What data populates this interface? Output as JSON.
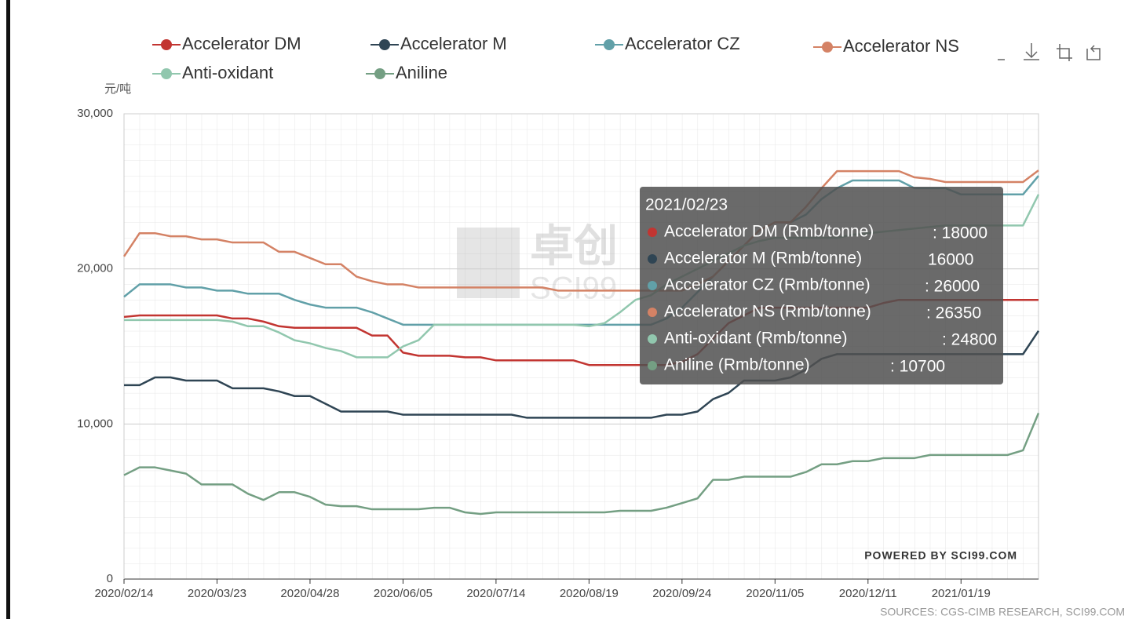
{
  "chart_data": {
    "type": "line",
    "y_axis_label": "元/吨",
    "watermark": "卓创",
    "watermark_sub": "SCI99",
    "credit": "POWERED BY SCI99.COM",
    "source": "SOURCES: CGS-CIMB RESEARCH, SCI99.COM",
    "categories": [
      "2020/02/14",
      null,
      null,
      null,
      null,
      null,
      "2020/03/23",
      null,
      null,
      null,
      null,
      null,
      "2020/04/28",
      null,
      null,
      null,
      null,
      null,
      "2020/06/05",
      null,
      null,
      null,
      null,
      null,
      "2020/07/14",
      null,
      null,
      null,
      null,
      null,
      "2020/08/19",
      null,
      null,
      null,
      null,
      null,
      "2020/09/24",
      null,
      null,
      null,
      null,
      null,
      "2020/11/05",
      null,
      null,
      null,
      null,
      null,
      "2020/12/11",
      null,
      null,
      null,
      null,
      null,
      "2021/01/19",
      null,
      null,
      null,
      null,
      null
    ],
    "ylim": [
      0,
      30000
    ],
    "yticks": [
      0,
      {
        "value": 10000,
        "label": "10,000"
      },
      {
        "value": 20000,
        "label": "20,000"
      },
      {
        "value": 30000,
        "label": "30,000"
      }
    ],
    "grid": true,
    "series": [
      {
        "name": "Accelerator DM",
        "color": "#c23531",
        "values": [
          16900,
          17000,
          17000,
          17000,
          17000,
          17000,
          17000,
          16800,
          16800,
          16600,
          16300,
          16200,
          16200,
          16200,
          16200,
          16200,
          15700,
          15700,
          14600,
          14400,
          14400,
          14400,
          14300,
          14300,
          14100,
          14100,
          14100,
          14100,
          14100,
          14100,
          13800,
          13800,
          13800,
          13800,
          13800,
          13800,
          14000,
          14500,
          15500,
          16500,
          17000,
          17500,
          17500,
          17500,
          17500,
          17500,
          17500,
          17500,
          17500,
          17800,
          18000,
          18000,
          18000,
          18000,
          18000,
          18000,
          18000,
          18000,
          18000,
          18000
        ]
      },
      {
        "name": "Accelerator M",
        "color": "#2f4554",
        "values": [
          12500,
          12500,
          13000,
          13000,
          12800,
          12800,
          12800,
          12300,
          12300,
          12300,
          12100,
          11800,
          11800,
          11300,
          10800,
          10800,
          10800,
          10800,
          10600,
          10600,
          10600,
          10600,
          10600,
          10600,
          10600,
          10600,
          10400,
          10400,
          10400,
          10400,
          10400,
          10400,
          10400,
          10400,
          10400,
          10600,
          10600,
          10800,
          11600,
          12000,
          12800,
          12800,
          12800,
          13000,
          13500,
          14200,
          14500,
          14500,
          14500,
          14500,
          14500,
          14500,
          14500,
          14500,
          14500,
          14500,
          14500,
          14500,
          14500,
          16000
        ]
      },
      {
        "name": "Accelerator CZ",
        "color": "#61a0a8",
        "values": [
          18200,
          19000,
          19000,
          19000,
          18800,
          18800,
          18600,
          18600,
          18400,
          18400,
          18400,
          18000,
          17700,
          17500,
          17500,
          17500,
          17200,
          16800,
          16400,
          16400,
          16400,
          16400,
          16400,
          16400,
          16400,
          16400,
          16400,
          16400,
          16400,
          16400,
          16400,
          16400,
          16400,
          16400,
          16400,
          16800,
          17500,
          18500,
          19500,
          20500,
          21500,
          22500,
          23000,
          23000,
          23500,
          24500,
          25200,
          25700,
          25700,
          25700,
          25700,
          25200,
          25200,
          25200,
          24800,
          24800,
          24800,
          24800,
          24800,
          26000
        ]
      },
      {
        "name": "Accelerator NS",
        "color": "#d48265",
        "values": [
          20800,
          22300,
          22300,
          22100,
          22100,
          21900,
          21900,
          21700,
          21700,
          21700,
          21100,
          21100,
          20700,
          20300,
          20300,
          19500,
          19200,
          19000,
          19000,
          18800,
          18800,
          18800,
          18800,
          18800,
          18800,
          18800,
          18800,
          18800,
          18600,
          18600,
          18600,
          18600,
          18600,
          18600,
          18600,
          18600,
          18600,
          19000,
          19500,
          20500,
          21500,
          22500,
          23000,
          23000,
          24000,
          25200,
          26300,
          26300,
          26300,
          26300,
          26300,
          25900,
          25800,
          25600,
          25600,
          25600,
          25600,
          25600,
          25600,
          26350
        ]
      },
      {
        "name": "Anti-oxidant",
        "color": "#91c7ae",
        "values": [
          16700,
          16700,
          16700,
          16700,
          16700,
          16700,
          16700,
          16600,
          16300,
          16300,
          15900,
          15400,
          15200,
          14900,
          14700,
          14300,
          14300,
          14300,
          15000,
          15400,
          16400,
          16400,
          16400,
          16400,
          16400,
          16400,
          16400,
          16400,
          16400,
          16400,
          16300,
          16500,
          17200,
          18000,
          18300,
          19000,
          19500,
          20000,
          20500,
          21000,
          21500,
          21800,
          22000,
          22000,
          22000,
          22000,
          22000,
          22200,
          22300,
          22400,
          22500,
          22600,
          22700,
          22800,
          22800,
          22800,
          22800,
          22800,
          22800,
          24800
        ]
      },
      {
        "name": "Aniline",
        "color": "#749f83",
        "values": [
          6700,
          7200,
          7200,
          7000,
          6800,
          6100,
          6100,
          6100,
          5500,
          5100,
          5600,
          5600,
          5300,
          4800,
          4700,
          4700,
          4500,
          4500,
          4500,
          4500,
          4600,
          4600,
          4300,
          4200,
          4300,
          4300,
          4300,
          4300,
          4300,
          4300,
          4300,
          4300,
          4400,
          4400,
          4400,
          4600,
          4900,
          5200,
          6400,
          6400,
          6600,
          6600,
          6600,
          6600,
          6900,
          7400,
          7400,
          7600,
          7600,
          7800,
          7800,
          7800,
          8000,
          8000,
          8000,
          8000,
          8000,
          8000,
          8300,
          10700
        ]
      }
    ],
    "tooltip": {
      "date": "2021/02/23",
      "items": [
        {
          "name": "Accelerator DM (Rmb/tonne)",
          "value": 18000,
          "label": ": 18000"
        },
        {
          "name": "Accelerator M (Rmb/tonne)",
          "value": 16000,
          "label": "16000"
        },
        {
          "name": "Accelerator CZ (Rmb/tonne)",
          "value": 26000,
          "label": ": 26000"
        },
        {
          "name": "Accelerator NS (Rmb/tonne)",
          "value": 26350,
          "label": ": 26350"
        },
        {
          "name": "Anti-oxidant (Rmb/tonne)",
          "value": 24800,
          "label": ": 24800"
        },
        {
          "name": "Aniline (Rmb/tonne)",
          "value": 10700,
          "label": ": 10700"
        }
      ]
    }
  }
}
